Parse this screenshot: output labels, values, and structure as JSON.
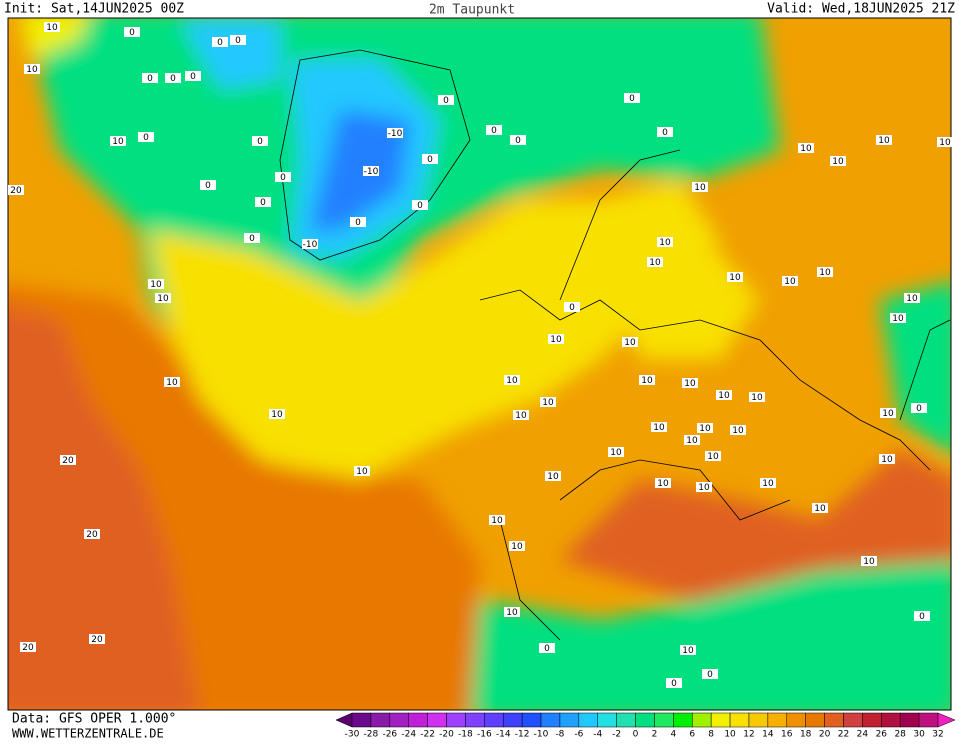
{
  "header": {
    "init": "Init: Sat,14JUN2025 00Z",
    "title": "2m Taupunkt",
    "valid": "Valid: Wed,18JUN2025 21Z"
  },
  "footer": {
    "data": "Data: GFS OPER 1.000°",
    "site": "WWW.WETTERZENTRALE.DE"
  },
  "colorbar": {
    "labels": [
      -30,
      -28,
      -26,
      -24,
      -22,
      -20,
      -18,
      -16,
      -14,
      -12,
      -10,
      -8,
      -6,
      -4,
      -2,
      0,
      2,
      4,
      6,
      8,
      10,
      12,
      14,
      16,
      18,
      20,
      22,
      24,
      26,
      28,
      30,
      32
    ],
    "colors": [
      "#5a0070",
      "#6a0a8a",
      "#8a1aa8",
      "#a020c0",
      "#c020d8",
      "#d030f0",
      "#a040ff",
      "#8040ff",
      "#6040ff",
      "#4040ff",
      "#2050ff",
      "#2080ff",
      "#20a0ff",
      "#20c8ff",
      "#20e0e0",
      "#20e0b0",
      "#00e080",
      "#20e860",
      "#00f000",
      "#a0f000",
      "#f0f000",
      "#f8e000",
      "#f8c800",
      "#f8b000",
      "#f09000",
      "#e87800",
      "#e06020",
      "#d04040",
      "#c02030",
      "#b01040",
      "#a00050",
      "#c01080",
      "#f020c0"
    ]
  },
  "map": {
    "contour_labels": [
      10,
      10,
      0,
      0,
      0,
      0,
      0,
      0,
      10,
      20,
      0,
      0,
      0,
      0,
      0,
      0,
      -10,
      -10,
      -10,
      0,
      0,
      0,
      0,
      0,
      0,
      0,
      0,
      10,
      10,
      10,
      10,
      10,
      10,
      10,
      10,
      10,
      10,
      10,
      10,
      10,
      10,
      0,
      10,
      10,
      10,
      10,
      10,
      10,
      10,
      10,
      10,
      10,
      10,
      10,
      10,
      10,
      10,
      10,
      10,
      10,
      10,
      10,
      10,
      20,
      20,
      10,
      10,
      10,
      0,
      10,
      0,
      0,
      10,
      0,
      10,
      10,
      10,
      0,
      20,
      20,
      10
    ]
  }
}
